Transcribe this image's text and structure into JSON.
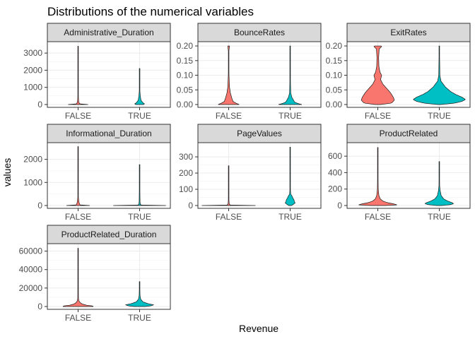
{
  "chart_data": {
    "type": "violin",
    "title": "Distributions of the numerical variables",
    "xlabel": "Revenue",
    "ylabel": "values",
    "categories": [
      "FALSE",
      "TRUE"
    ],
    "category_colors": {
      "FALSE": "#F8766D",
      "TRUE": "#00BFC4"
    },
    "facet_layout": "3 columns, free y scales",
    "grid": true,
    "legend": "none",
    "facets": [
      {
        "name": "Administrative_Duration",
        "ylim": [
          0,
          3500
        ],
        "yticks": [
          0,
          1000,
          2000,
          3000
        ],
        "violins": [
          {
            "category": "FALSE",
            "max": 3400,
            "profile": [
              [
                0,
                0.36
              ],
              [
                30,
                0.08
              ],
              [
                80,
                0.04
              ],
              [
                200,
                0.02
              ],
              [
                400,
                0.012
              ],
              [
                700,
                0.008
              ],
              [
                3400,
                0.004
              ]
            ]
          },
          {
            "category": "TRUE",
            "max": 2100,
            "profile": [
              [
                0,
                0.14
              ],
              [
                40,
                0.18
              ],
              [
                100,
                0.12
              ],
              [
                250,
                0.05
              ],
              [
                500,
                0.025
              ],
              [
                800,
                0.01
              ],
              [
                2100,
                0.004
              ]
            ]
          }
        ]
      },
      {
        "name": "BounceRates",
        "ylim": [
          0,
          0.205
        ],
        "yticks": [
          0.0,
          0.05,
          0.1,
          0.15,
          0.2
        ],
        "violins": [
          {
            "category": "FALSE",
            "max": 0.2,
            "profile": [
              [
                0,
                0.38
              ],
              [
                0.004,
                0.28
              ],
              [
                0.01,
                0.16
              ],
              [
                0.02,
                0.12
              ],
              [
                0.03,
                0.09
              ],
              [
                0.04,
                0.06
              ],
              [
                0.06,
                0.03
              ],
              [
                0.1,
                0.012
              ],
              [
                0.18,
                0.006
              ],
              [
                0.2,
                0.03
              ]
            ]
          },
          {
            "category": "TRUE",
            "max": 0.2,
            "profile": [
              [
                0,
                0.42
              ],
              [
                0.003,
                0.3
              ],
              [
                0.008,
                0.16
              ],
              [
                0.015,
                0.12
              ],
              [
                0.025,
                0.06
              ],
              [
                0.04,
                0.02
              ],
              [
                0.1,
                0.005
              ],
              [
                0.2,
                0.004
              ]
            ]
          }
        ]
      },
      {
        "name": "ExitRates",
        "ylim": [
          0,
          0.205
        ],
        "yticks": [
          0.0,
          0.05,
          0.1,
          0.15,
          0.2
        ],
        "violins": [
          {
            "category": "FALSE",
            "max": 0.2,
            "profile": [
              [
                0,
                0.1
              ],
              [
                0.005,
                0.5
              ],
              [
                0.015,
                0.6
              ],
              [
                0.025,
                0.56
              ],
              [
                0.04,
                0.46
              ],
              [
                0.055,
                0.32
              ],
              [
                0.07,
                0.18
              ],
              [
                0.085,
                0.1
              ],
              [
                0.1,
                0.14
              ],
              [
                0.11,
                0.08
              ],
              [
                0.13,
                0.04
              ],
              [
                0.16,
                0.03
              ],
              [
                0.19,
                0.05
              ],
              [
                0.198,
                0.14
              ],
              [
                0.2,
                0.12
              ]
            ]
          },
          {
            "category": "TRUE",
            "max": 0.2,
            "profile": [
              [
                0,
                0.05
              ],
              [
                0.004,
                0.5
              ],
              [
                0.01,
                0.8
              ],
              [
                0.017,
                0.95
              ],
              [
                0.025,
                0.82
              ],
              [
                0.035,
                0.58
              ],
              [
                0.045,
                0.4
              ],
              [
                0.06,
                0.22
              ],
              [
                0.08,
                0.06
              ],
              [
                0.1,
                0.02
              ],
              [
                0.2,
                0.004
              ]
            ]
          }
        ]
      },
      {
        "name": "Informational_Duration",
        "ylim": [
          0,
          2600
        ],
        "yticks": [
          0,
          1000,
          2000
        ],
        "violins": [
          {
            "category": "FALSE",
            "max": 2550,
            "profile": [
              [
                0,
                0.42
              ],
              [
                15,
                0.08
              ],
              [
                50,
                0.06
              ],
              [
                120,
                0.035
              ],
              [
                250,
                0.02
              ],
              [
                400,
                0.008
              ],
              [
                2550,
                0.004
              ]
            ]
          },
          {
            "category": "TRUE",
            "max": 1770,
            "profile": [
              [
                0,
                0.95
              ],
              [
                10,
                0.1
              ],
              [
                40,
                0.03
              ],
              [
                150,
                0.015
              ],
              [
                500,
                0.012
              ],
              [
                900,
                0.008
              ],
              [
                1770,
                0.004
              ]
            ]
          }
        ]
      },
      {
        "name": "PageValues",
        "ylim": [
          0,
          370
        ],
        "yticks": [
          0,
          100,
          200,
          300
        ],
        "violins": [
          {
            "category": "FALSE",
            "max": 245,
            "profile": [
              [
                0,
                0.97
              ],
              [
                2,
                0.06
              ],
              [
                10,
                0.02
              ],
              [
                40,
                0.008
              ],
              [
                245,
                0.004
              ]
            ]
          },
          {
            "category": "TRUE",
            "max": 360,
            "profile": [
              [
                0,
                0.05
              ],
              [
                8,
                0.12
              ],
              [
                16,
                0.18
              ],
              [
                25,
                0.15
              ],
              [
                35,
                0.14
              ],
              [
                45,
                0.1
              ],
              [
                60,
                0.06
              ],
              [
                70,
                0.02
              ],
              [
                100,
                0.008
              ],
              [
                360,
                0.004
              ]
            ]
          }
        ]
      },
      {
        "name": "ProductRelated",
        "ylim": [
          0,
          730
        ],
        "yticks": [
          0,
          200,
          400,
          600
        ],
        "violins": [
          {
            "category": "FALSE",
            "max": 705,
            "profile": [
              [
                0,
                0.25
              ],
              [
                8,
                0.7
              ],
              [
                20,
                0.58
              ],
              [
                35,
                0.34
              ],
              [
                55,
                0.18
              ],
              [
                80,
                0.09
              ],
              [
                120,
                0.04
              ],
              [
                200,
                0.015
              ],
              [
                400,
                0.006
              ],
              [
                705,
                0.004
              ]
            ]
          },
          {
            "category": "TRUE",
            "max": 535,
            "profile": [
              [
                0,
                0.1
              ],
              [
                10,
                0.4
              ],
              [
                22,
                0.52
              ],
              [
                35,
                0.46
              ],
              [
                55,
                0.3
              ],
              [
                80,
                0.16
              ],
              [
                120,
                0.07
              ],
              [
                180,
                0.03
              ],
              [
                240,
                0.012
              ],
              [
                535,
                0.004
              ]
            ]
          }
        ]
      },
      {
        "name": "ProductRelated_Duration",
        "ylim": [
          0,
          65000
        ],
        "yticks": [
          0,
          20000,
          40000,
          60000
        ],
        "violins": [
          {
            "category": "FALSE",
            "max": 63000,
            "profile": [
              [
                0,
                0.55
              ],
              [
                400,
                0.6
              ],
              [
                1200,
                0.34
              ],
              [
                2500,
                0.16
              ],
              [
                4000,
                0.08
              ],
              [
                6000,
                0.03
              ],
              [
                9000,
                0.012
              ],
              [
                63000,
                0.004
              ]
            ]
          },
          {
            "category": "TRUE",
            "max": 27000,
            "profile": [
              [
                0,
                0.2
              ],
              [
                800,
                0.42
              ],
              [
                1800,
                0.5
              ],
              [
                3000,
                0.32
              ],
              [
                5000,
                0.12
              ],
              [
                8000,
                0.04
              ],
              [
                12000,
                0.015
              ],
              [
                27000,
                0.004
              ]
            ]
          }
        ]
      }
    ]
  }
}
